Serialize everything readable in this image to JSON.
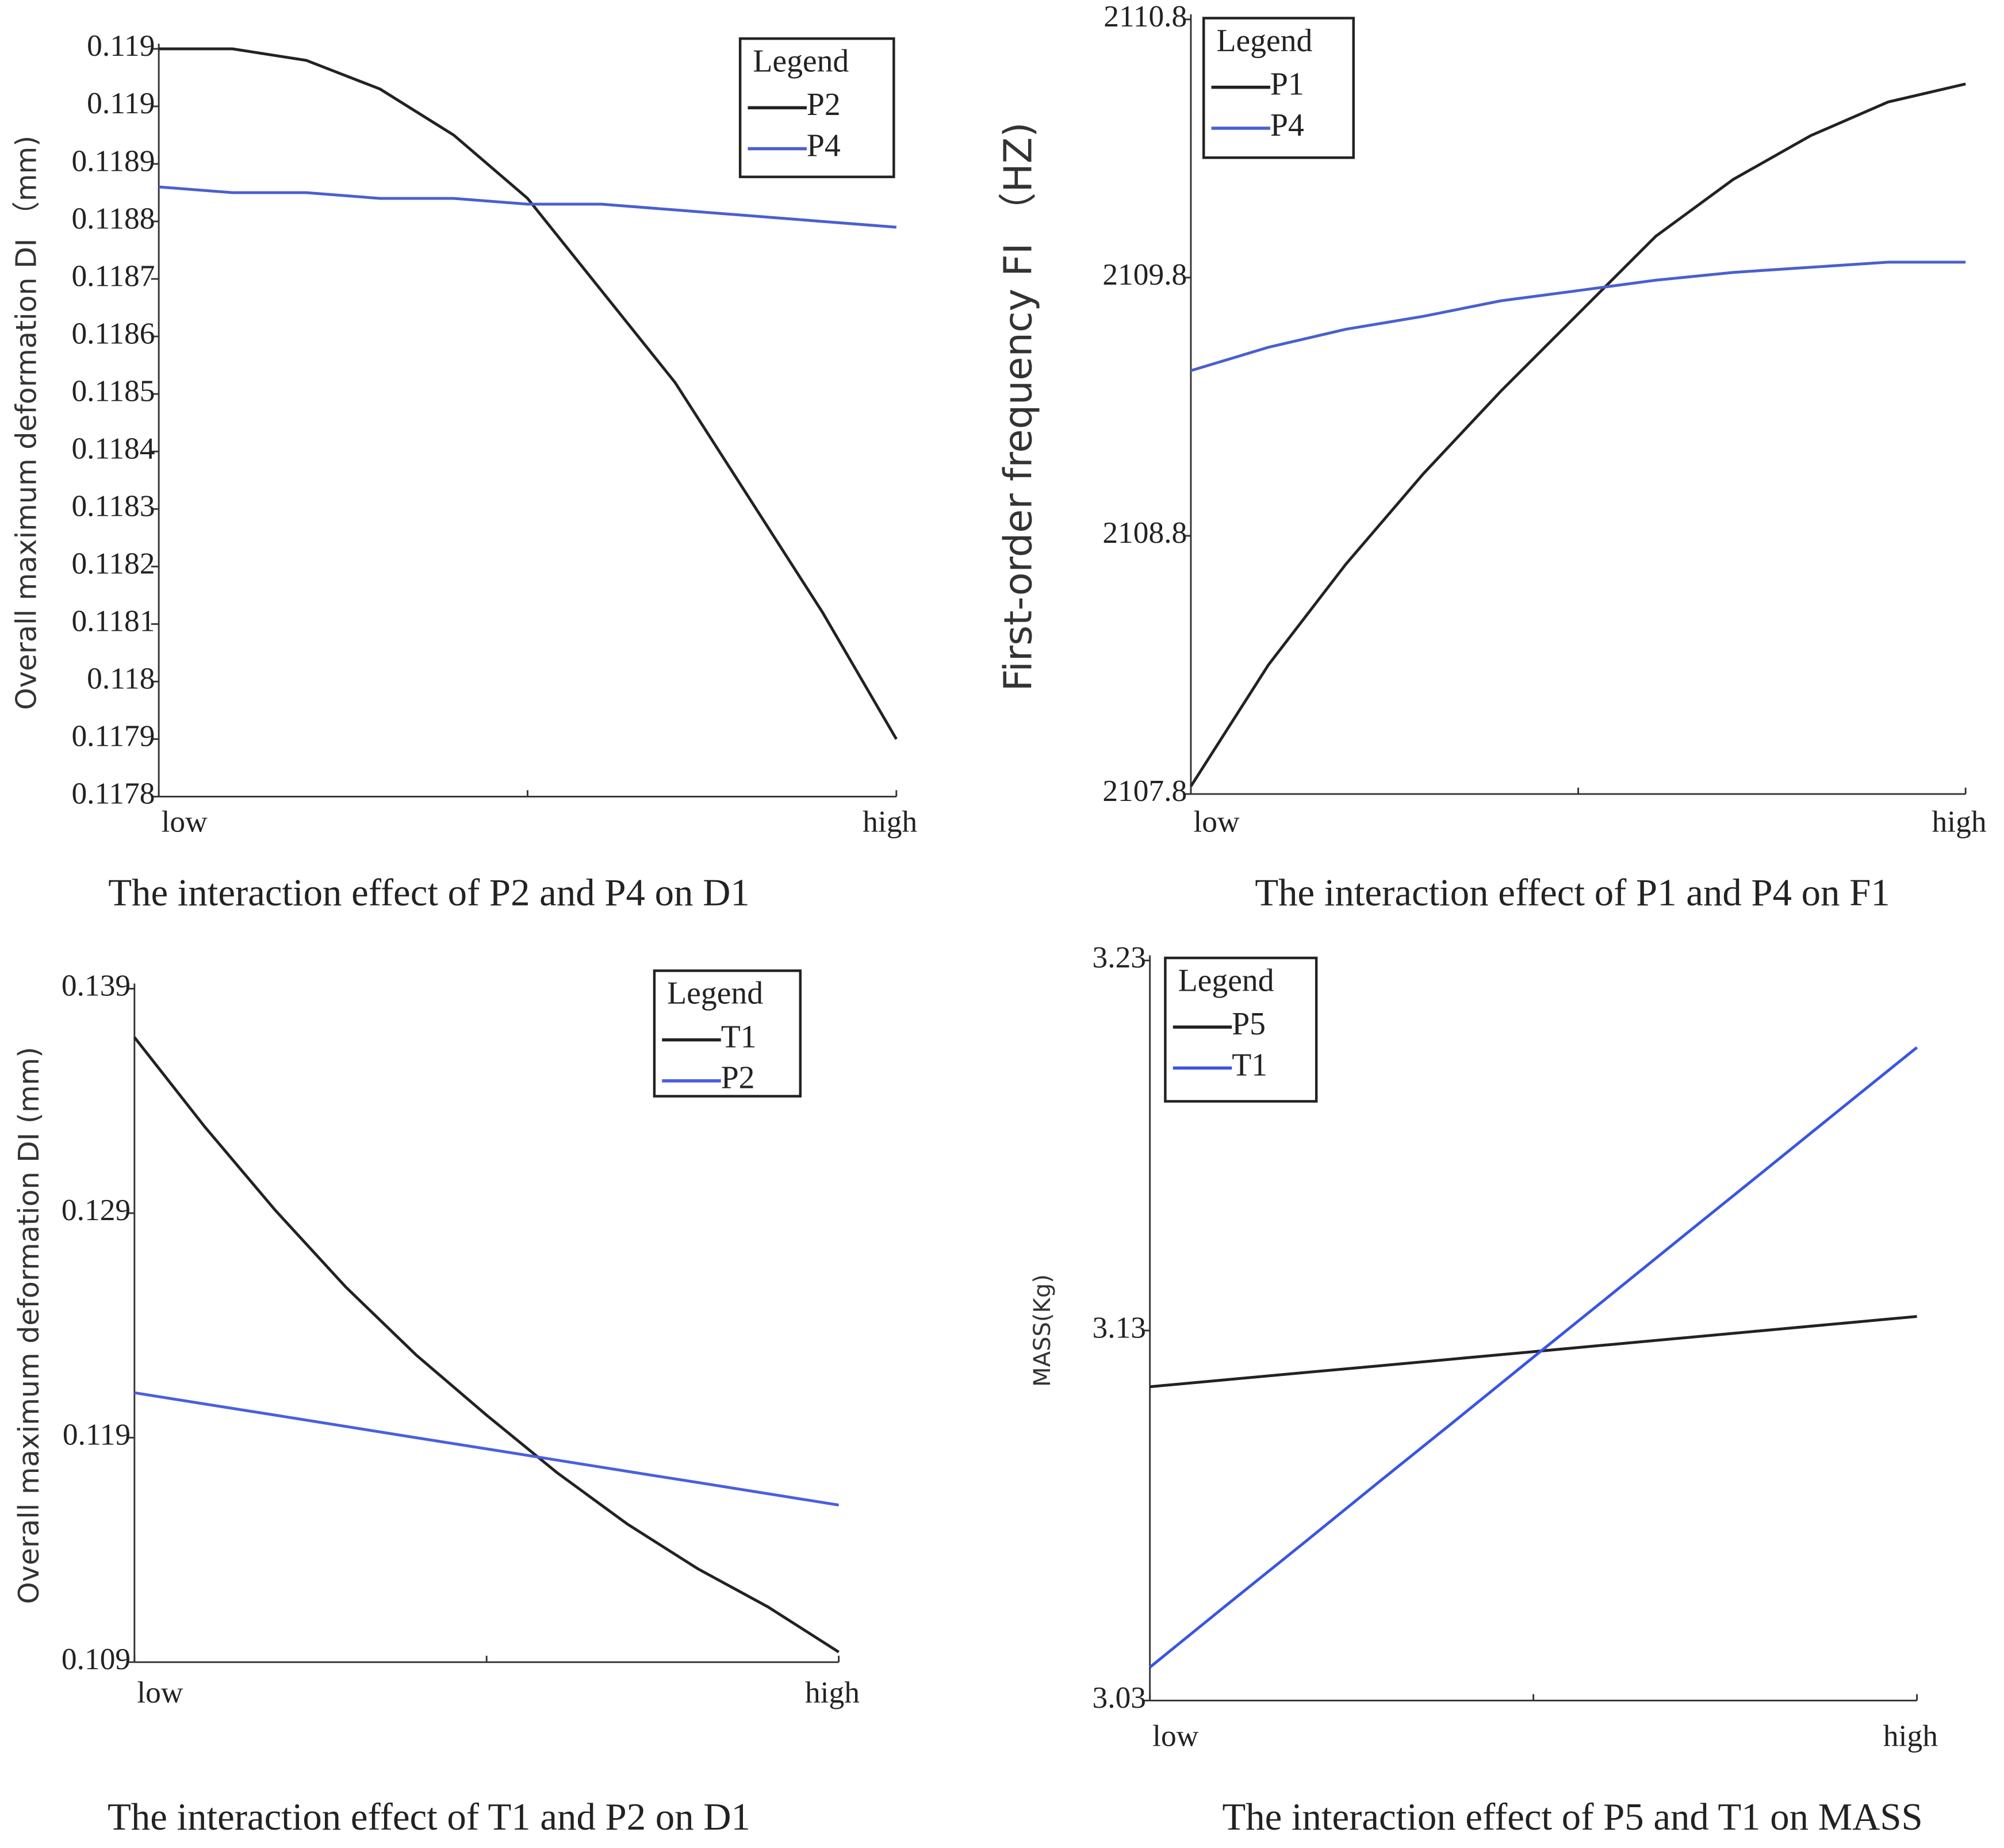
{
  "chart_data": [
    {
      "type": "line",
      "title": "The interaction effect of P2 and P4 on D1",
      "ylabel": "Overall maximum deformation DI （mm)",
      "legend_title": "Legend",
      "categories": [
        "low",
        null,
        null,
        null,
        null,
        null,
        null,
        null,
        null,
        null,
        "high"
      ],
      "series": [
        {
          "name": "P2",
          "color": "#222222",
          "values": [
            0.1191,
            0.1191,
            0.11908,
            0.11903,
            0.11895,
            0.11884,
            0.11868,
            0.11852,
            0.11832,
            0.11812,
            0.1179
          ]
        },
        {
          "name": "P4",
          "color": "#4a5fcf",
          "values": [
            0.11886,
            0.11885,
            0.11885,
            0.11884,
            0.11884,
            0.11883,
            0.11883,
            0.11882,
            0.11881,
            0.1188,
            0.11879
          ]
        }
      ],
      "ylim": [
        0.1178,
        0.1191
      ],
      "yticks": [
        {
          "value": 0.1191,
          "label": "0.119"
        },
        0.119,
        0.1189,
        0.1188,
        0.1187,
        0.1186,
        0.1185,
        0.1184,
        0.1183,
        0.1182,
        0.1181,
        0.118,
        0.1179,
        0.1178
      ]
    },
    {
      "type": "line",
      "title": "The interaction effect of P1 and P4 on F1",
      "ylabel": "First-order frequency FI （HZ)",
      "legend_title": "Legend",
      "categories": [
        "low",
        null,
        null,
        null,
        null,
        null,
        null,
        null,
        null,
        null,
        "high"
      ],
      "series": [
        {
          "name": "P1",
          "color": "#222222",
          "values": [
            2107.83,
            2108.3,
            2108.69,
            2109.04,
            2109.36,
            2109.66,
            2109.96,
            2110.18,
            2110.35,
            2110.48,
            2110.55
          ]
        },
        {
          "name": "P4",
          "color": "#4a5fcf",
          "values": [
            2109.44,
            2109.53,
            2109.6,
            2109.65,
            2109.71,
            2109.75,
            2109.79,
            2109.82,
            2109.84,
            2109.86,
            2109.86
          ]
        }
      ],
      "ylim": [
        2107.8,
        2110.8
      ],
      "yticks": [
        2107.8,
        2108.8,
        2109.8,
        2110.8
      ]
    },
    {
      "type": "line",
      "title": "The interaction effect of T1 and P2 on D1",
      "ylabel": "Overall maximum deformation DI  (mm)",
      "legend_title": "Legend",
      "categories": [
        "low",
        null,
        null,
        null,
        null,
        null,
        null,
        null,
        null,
        null,
        "high"
      ],
      "series": [
        {
          "name": "T1",
          "color": "#222222",
          "values": [
            0.13683,
            0.13284,
            0.12913,
            0.12571,
            0.12268,
            0.12,
            0.11744,
            0.11515,
            0.11316,
            0.11145,
            0.10945
          ]
        },
        {
          "name": "P2",
          "color": "#4a5fdf",
          "values": [
            0.121,
            0.1205,
            0.12,
            0.1195,
            0.119,
            0.1185,
            0.118,
            0.1175,
            0.117,
            0.1165,
            0.116
          ]
        }
      ],
      "ylim": [
        0.109,
        0.139
      ],
      "yticks": [
        0.109,
        0.119,
        0.129,
        0.139
      ]
    },
    {
      "type": "line",
      "title": "The interaction effect of P5 and T1 on MASS",
      "ylabel": "MASS(Kg)",
      "legend_title": "Legend",
      "categories": [
        "low",
        null,
        null,
        null,
        null,
        null,
        null,
        null,
        null,
        null,
        "high"
      ],
      "series": [
        {
          "name": "P5",
          "color": "#222222",
          "values": [
            3.1148,
            3.1167,
            3.1186,
            3.1205,
            3.1224,
            3.1243,
            3.1262,
            3.1281,
            3.13,
            3.1319,
            3.1338
          ]
        },
        {
          "name": "T1",
          "color": "#3a55e0",
          "values": [
            3.039,
            3.0558,
            3.0725,
            3.0893,
            3.106,
            3.1228,
            3.1395,
            3.1563,
            3.173,
            3.1898,
            3.2065
          ]
        }
      ],
      "ylim": [
        3.03,
        3.23
      ],
      "yticks": [
        3.03,
        3.13,
        3.23
      ]
    }
  ]
}
